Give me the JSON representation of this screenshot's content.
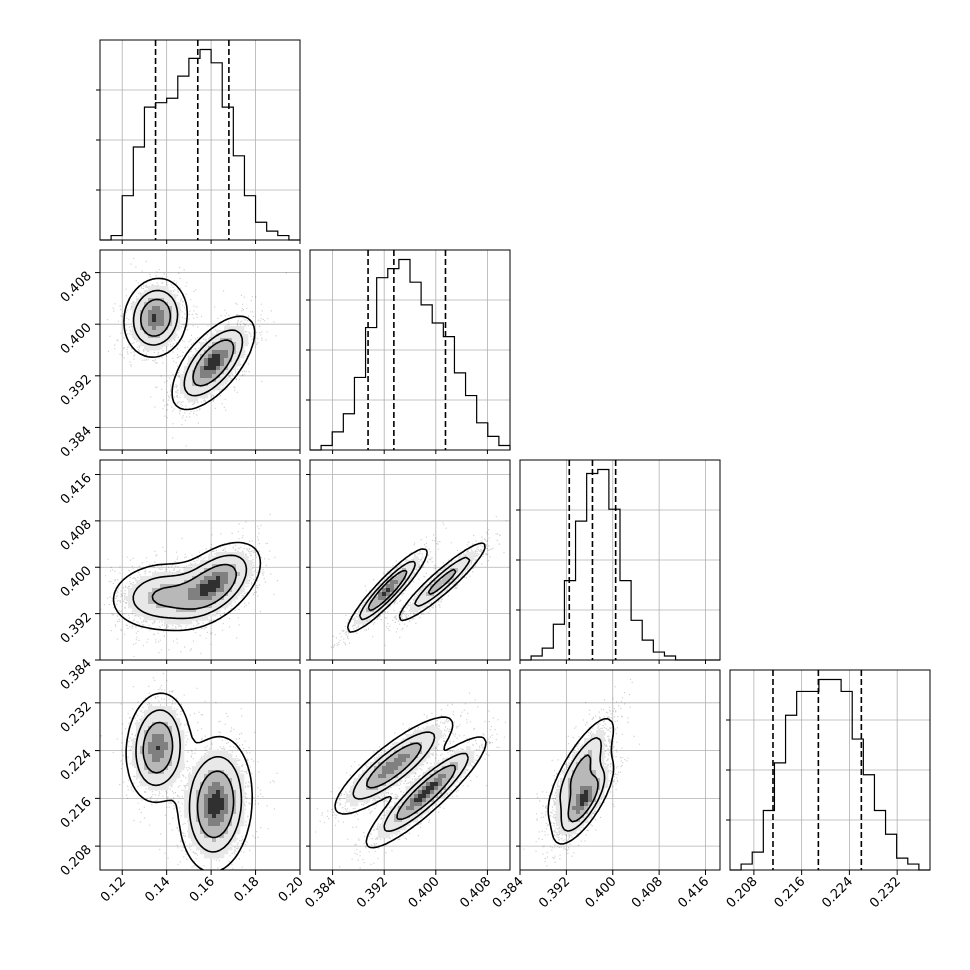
{
  "chart_data": {
    "type": "corner",
    "grid": true,
    "params": [
      {
        "range": [
          0.11,
          0.2
        ],
        "ticks": [
          "0.12",
          "0.14",
          "0.16",
          "0.18",
          "0.20"
        ],
        "tick_values": [
          0.12,
          0.14,
          0.16,
          0.18,
          0.2
        ],
        "hist_bins": [
          0,
          1,
          10,
          21,
          30,
          31,
          32,
          37,
          41,
          43,
          40,
          30,
          19,
          10,
          4,
          2,
          1,
          0
        ],
        "quantiles": [
          0.135,
          0.154,
          0.168
        ]
      },
      {
        "range": [
          0.3805,
          0.4115
        ],
        "ticks": [
          "0.384",
          "0.392",
          "0.400",
          "0.408"
        ],
        "tick_values": [
          0.384,
          0.392,
          0.4,
          0.408
        ],
        "hist_bins": [
          0,
          1,
          4,
          8,
          16,
          27,
          38,
          40,
          42,
          37,
          32,
          28,
          25,
          17,
          12,
          6,
          3,
          1
        ],
        "quantiles": [
          0.3895,
          0.3935,
          0.4015
        ]
      },
      {
        "range": [
          0.384,
          0.4185
        ],
        "ticks": [
          "0.384",
          "0.392",
          "0.400",
          "0.408",
          "0.416"
        ],
        "tick_values": [
          0.384,
          0.392,
          0.4,
          0.408,
          0.416
        ],
        "hist_bins": [
          0,
          1,
          3,
          9,
          20,
          35,
          47,
          48,
          38,
          20,
          10,
          5,
          2,
          1,
          0,
          0,
          0,
          0
        ],
        "quantiles": [
          0.3925,
          0.3965,
          0.4005
        ]
      },
      {
        "range": [
          0.204,
          0.2375
        ],
        "ticks": [
          "0.208",
          "0.216",
          "0.224",
          "0.232"
        ],
        "tick_values": [
          0.208,
          0.216,
          0.224,
          0.232
        ],
        "hist_bins": [
          0,
          1,
          3,
          10,
          18,
          26,
          30,
          30,
          32,
          32,
          30,
          22,
          16,
          10,
          6,
          2,
          1,
          0
        ],
        "quantiles": [
          0.2112,
          0.2188,
          0.226
        ]
      }
    ],
    "y_tick_labels": {
      "1": {
        "ticks": [
          "0.384",
          "0.392",
          "0.400",
          "0.408"
        ],
        "tick_values": [
          0.384,
          0.392,
          0.4,
          0.408
        ]
      },
      "2": {
        "ticks": [
          "0.384",
          "0.392",
          "0.400",
          "0.408",
          "0.416"
        ],
        "tick_values": [
          0.384,
          0.392,
          0.4,
          0.408,
          0.416
        ]
      },
      "3": {
        "ticks": [
          "0.208",
          "0.216",
          "0.224",
          "0.232"
        ],
        "tick_values": [
          0.208,
          0.216,
          0.224,
          0.232
        ]
      }
    },
    "pairs": [
      {
        "row": 1,
        "col": 0,
        "modes": [
          {
            "x": 0.135,
            "y": 0.401,
            "sx": 0.007,
            "sy": 0.003,
            "rho": 0.1,
            "w": 0.45
          },
          {
            "x": 0.161,
            "y": 0.394,
            "sx": 0.009,
            "sy": 0.0035,
            "rho": 0.65,
            "w": 0.55
          }
        ]
      },
      {
        "row": 2,
        "col": 0,
        "modes": [
          {
            "x": 0.138,
            "y": 0.395,
            "sx": 0.012,
            "sy": 0.003,
            "rho": 0.1,
            "w": 0.45
          },
          {
            "x": 0.162,
            "y": 0.3972,
            "sx": 0.01,
            "sy": 0.0035,
            "rho": 0.5,
            "w": 0.55
          }
        ]
      },
      {
        "row": 2,
        "col": 1,
        "modes": [
          {
            "x": 0.3925,
            "y": 0.396,
            "sx": 0.003,
            "sy": 0.0035,
            "rho": 0.92,
            "w": 0.55
          },
          {
            "x": 0.401,
            "y": 0.3975,
            "sx": 0.0035,
            "sy": 0.0035,
            "rho": 0.93,
            "w": 0.45
          }
        ]
      },
      {
        "row": 3,
        "col": 0,
        "modes": [
          {
            "x": 0.136,
            "y": 0.2245,
            "sx": 0.007,
            "sy": 0.0045,
            "rho": 0.1,
            "w": 0.4
          },
          {
            "x": 0.162,
            "y": 0.215,
            "sx": 0.008,
            "sy": 0.0055,
            "rho": 0.1,
            "w": 0.6
          }
        ]
      },
      {
        "row": 3,
        "col": 1,
        "modes": [
          {
            "x": 0.3935,
            "y": 0.2215,
            "sx": 0.0045,
            "sy": 0.004,
            "rho": 0.85,
            "w": 0.5
          },
          {
            "x": 0.3985,
            "y": 0.217,
            "sx": 0.0045,
            "sy": 0.0045,
            "rho": 0.9,
            "w": 0.5
          }
        ]
      },
      {
        "row": 3,
        "col": 2,
        "modes": [
          {
            "x": 0.3945,
            "y": 0.221,
            "sx": 0.003,
            "sy": 0.0045,
            "rho": 0.8,
            "w": 0.5
          },
          {
            "x": 0.395,
            "y": 0.2155,
            "sx": 0.0025,
            "sy": 0.0035,
            "rho": 0.75,
            "w": 0.5
          }
        ]
      }
    ]
  }
}
